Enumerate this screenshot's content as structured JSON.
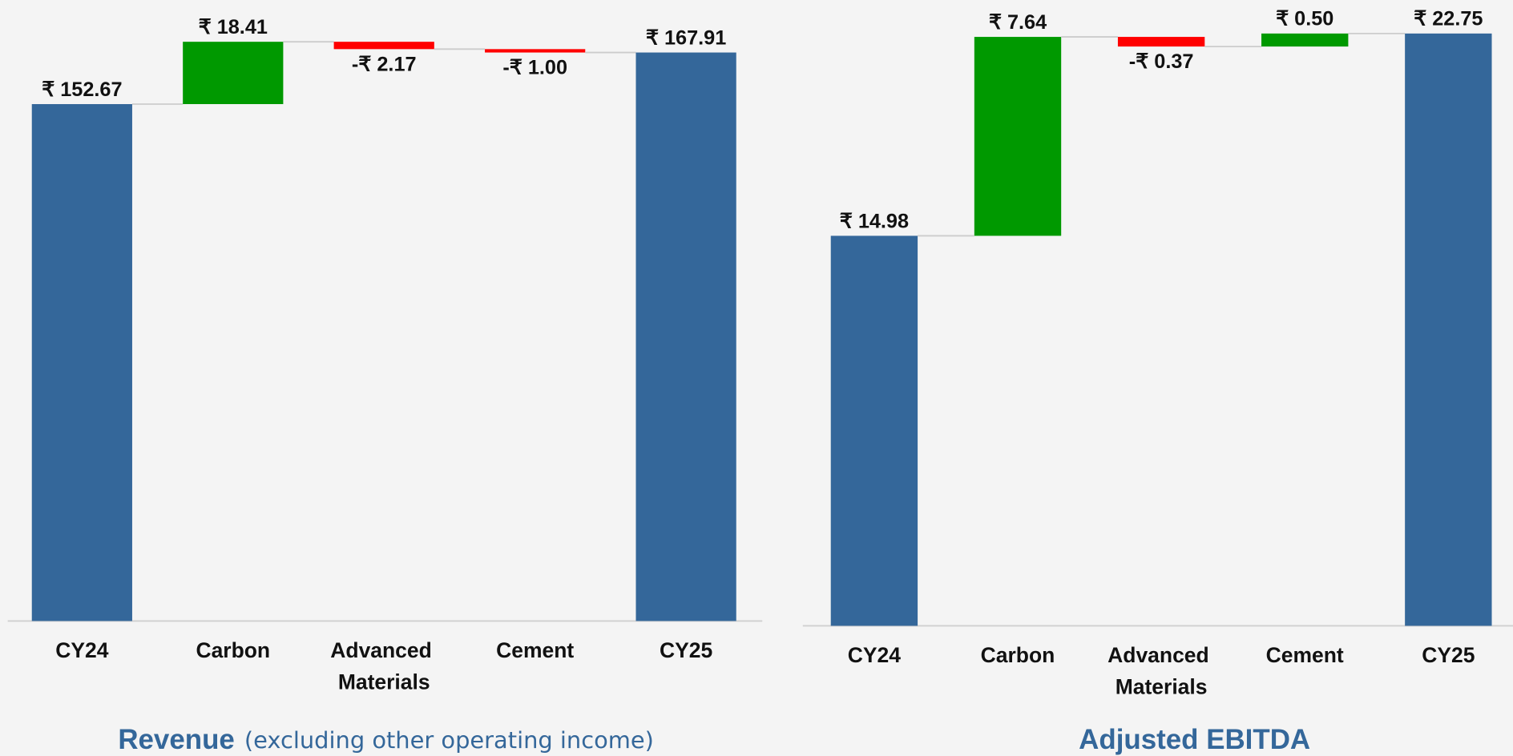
{
  "chart_data": [
    {
      "type": "waterfall",
      "title": "Revenue",
      "subtitle": "(excluding other operating income)",
      "categories": [
        "CY24",
        "Carbon",
        "Advanced Materials",
        "Cement",
        "CY25"
      ],
      "values": [
        152.67,
        18.41,
        -2.17,
        -1.0,
        167.91
      ],
      "value_labels": [
        "₹ 152.67",
        "₹ 18.41",
        "-₹ 2.17",
        "-₹ 1.00",
        "₹ 167.91"
      ],
      "measure": [
        "total",
        "relative",
        "relative",
        "relative",
        "total"
      ],
      "colors": {
        "total": "#34679a",
        "increase": "#009900",
        "decrease": "#ff0000"
      },
      "ylim": [
        0,
        180
      ]
    },
    {
      "type": "waterfall",
      "title": "Adjusted EBITDA",
      "categories": [
        "CY24",
        "Carbon",
        "Advanced Materials",
        "Cement",
        "CY25"
      ],
      "values": [
        14.98,
        7.64,
        -0.37,
        0.5,
        22.75
      ],
      "value_labels": [
        "₹ 14.98",
        "₹ 7.64",
        "-₹ 0.37",
        "₹ 0.50",
        "₹ 22.75"
      ],
      "measure": [
        "total",
        "relative",
        "relative",
        "relative",
        "total"
      ],
      "colors": {
        "total": "#34679a",
        "increase": "#009900",
        "decrease": "#ff0000"
      },
      "ylim": [
        0,
        24
      ]
    }
  ]
}
